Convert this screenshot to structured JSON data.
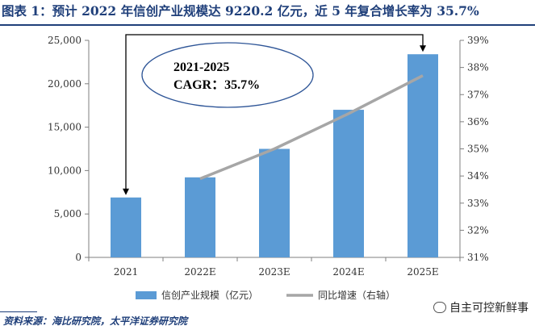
{
  "title": "图表 1：预计 2022 年信创产业规模达 9220.2 亿元，近 5 年复合增长率为 35.7%",
  "source": "资料来源：海比研究院，太平洋证券研究院",
  "watermark": {
    "text": "自主可控新鲜事",
    "icon": "wechat-icon"
  },
  "annotation": {
    "line1": "2021-2025",
    "line2": "CAGR：35.7%"
  },
  "chart_data": {
    "type": "bar",
    "categories": [
      "2021",
      "2022E",
      "2023E",
      "2024E",
      "2025E"
    ],
    "y_left": {
      "min": 0,
      "max": 25000,
      "ticks": [
        0,
        5000,
        10000,
        15000,
        20000,
        25000
      ],
      "tick_labels": [
        "0",
        "5,000",
        "10,000",
        "15,000",
        "20,000",
        "25,000"
      ]
    },
    "y_right": {
      "min": 31,
      "max": 39,
      "ticks": [
        31,
        32,
        33,
        34,
        35,
        36,
        37,
        38,
        39
      ],
      "tick_labels": [
        "31%",
        "32%",
        "33%",
        "34%",
        "35%",
        "36%",
        "37%",
        "38%",
        "39%"
      ]
    },
    "series": [
      {
        "name": "信创产业规模（亿元）",
        "type": "bar",
        "axis": "left",
        "color": "#5b9bd5",
        "values": [
          6900,
          9220.2,
          12500,
          17000,
          23400
        ]
      },
      {
        "name": "同比增速（右轴）",
        "type": "line",
        "axis": "right",
        "color": "#a6a6a6",
        "values": [
          null,
          33.9,
          35.0,
          36.3,
          37.7
        ]
      }
    ],
    "grid": false,
    "legend_position": "bottom"
  }
}
